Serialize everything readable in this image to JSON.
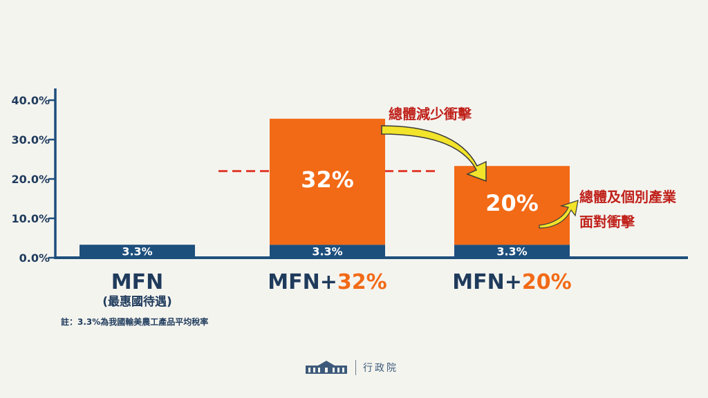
{
  "chart_data": {
    "type": "bar",
    "stacked": true,
    "yticks": [
      "40.0%",
      "30.0%",
      "20.0%",
      "10.0%",
      "0.0%"
    ],
    "ylim": [
      0,
      40
    ],
    "categories": [
      {
        "main": "MFN",
        "suffix": "",
        "sub": "(最惠國待遇)"
      },
      {
        "main": "MFN+",
        "suffix": "32%",
        "sub": ""
      },
      {
        "main": "MFN+",
        "suffix": "20%",
        "sub": ""
      }
    ],
    "series": [
      {
        "values": [
          3.3,
          3.3,
          3.3
        ],
        "labels": [
          "3.3%",
          "3.3%",
          "3.3%"
        ],
        "color": "#1d4f7c"
      },
      {
        "values": [
          0,
          32,
          20
        ],
        "labels": [
          "",
          "32%",
          "20%"
        ],
        "color": "#f26a16"
      }
    ],
    "reference_line": {
      "value": 22,
      "color": "#e03a2a",
      "style": "dashed"
    },
    "annotations": [
      "總體減少衝擊",
      "總體及個別產業",
      "面對衝擊"
    ],
    "colors": {
      "axis": "#1d4f7c",
      "label": "#1f3b5c",
      "accent": "#f26a16",
      "annotation": "#c0211b",
      "arrow": "#f2e32b"
    }
  },
  "footnote": "註：3.3%為我國輸美農工產品平均稅率",
  "org": {
    "logo_icon": "executive-yuan-building-icon",
    "name": "行政院"
  }
}
